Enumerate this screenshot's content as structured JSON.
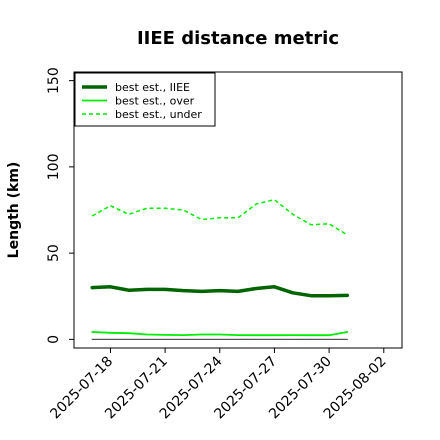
{
  "chart_data": {
    "type": "line",
    "title": "IIEE distance metric",
    "xlabel": "",
    "ylabel": "Length (km)",
    "x": [
      "2025-07-17",
      "2025-07-18",
      "2025-07-19",
      "2025-07-20",
      "2025-07-21",
      "2025-07-22",
      "2025-07-23",
      "2025-07-24",
      "2025-07-25",
      "2025-07-26",
      "2025-07-27",
      "2025-07-28",
      "2025-07-29",
      "2025-07-30",
      "2025-07-31"
    ],
    "xticks": [
      "2025-07-18",
      "2025-07-21",
      "2025-07-24",
      "2025-07-27",
      "2025-07-30",
      "2025-08-02"
    ],
    "xlim": [
      "2025-07-16",
      "2025-08-03"
    ],
    "yticks": [
      0,
      50,
      100,
      150
    ],
    "ylim": [
      -5,
      155
    ],
    "grid": false,
    "legend_position": "top-left",
    "series": [
      {
        "name": "best est., IIEE",
        "color": "#006400",
        "style": "solid",
        "width": 3.5,
        "values": [
          30,
          30.5,
          28.5,
          29,
          29,
          28.3,
          27.8,
          28.3,
          27.8,
          29.5,
          30.5,
          27,
          25.3,
          25.3,
          25.5
        ]
      },
      {
        "name": "best est., over",
        "color": "#00ee00",
        "style": "solid",
        "width": 1.8,
        "values": [
          4.3,
          3.8,
          3.6,
          2.8,
          2.6,
          2.5,
          2.8,
          2.8,
          2.5,
          2.4,
          2.4,
          2.5,
          2.4,
          2.4,
          4.3
        ]
      },
      {
        "name": "best est., under",
        "color": "#00ee00",
        "style": "dashed",
        "width": 1.5,
        "values": [
          71.5,
          77.5,
          72.5,
          76,
          76,
          75,
          69.5,
          70.5,
          70.5,
          78.5,
          81,
          72.5,
          66.5,
          67,
          60.5
        ]
      },
      {
        "color": "#555555",
        "style": "solid",
        "width": 1.2,
        "values": [
          0,
          0,
          0,
          0,
          0,
          0,
          0,
          0,
          0,
          0,
          0,
          0,
          0,
          0,
          0
        ]
      }
    ]
  }
}
